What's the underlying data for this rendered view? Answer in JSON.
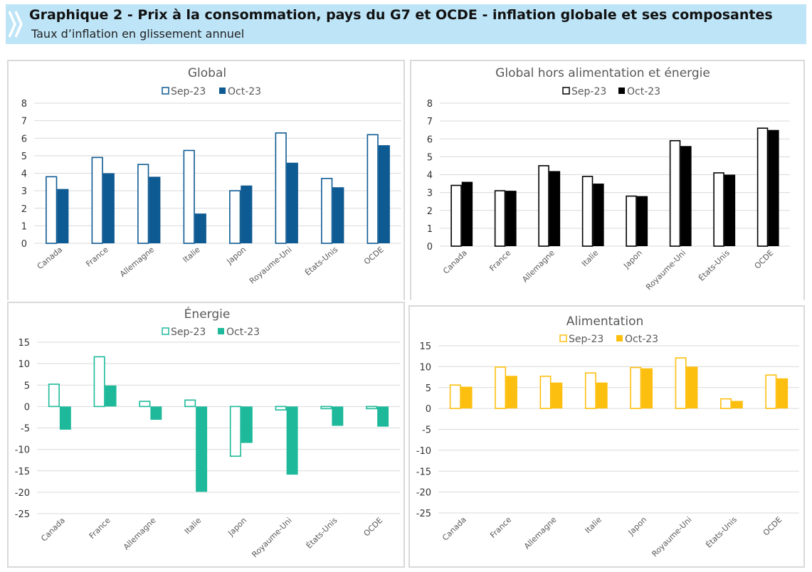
{
  "header": {
    "title": "Graphique 2 - Prix à la consommation, pays du G7 et OCDE - inflation globale et ses composantes",
    "subtitle": "Taux d’inflation en glissement annuel"
  },
  "chart_data": [
    {
      "type": "bar",
      "title": "Global",
      "categories": [
        "Canada",
        "France",
        "Allemagne",
        "Italie",
        "Japon",
        "Royaume-Uni",
        "États-Unis",
        "OCDE"
      ],
      "series": [
        {
          "name": "Sep-23",
          "values": [
            3.8,
            4.9,
            4.5,
            5.3,
            3.0,
            6.3,
            3.7,
            6.2
          ]
        },
        {
          "name": "Oct-23",
          "values": [
            3.1,
            4.0,
            3.8,
            1.7,
            3.3,
            4.6,
            3.2,
            5.6
          ]
        }
      ],
      "yticks": [
        "0",
        "1",
        "2",
        "3",
        "4",
        "5",
        "6",
        "7",
        "8"
      ],
      "ylim": [
        0,
        8
      ],
      "colors": {
        "accent": "#0e5a92"
      },
      "legend": "top-center",
      "grid": true
    },
    {
      "type": "bar",
      "title": "Global hors alimentation et énergie",
      "categories": [
        "Canada",
        "France",
        "Allemagne",
        "Italie",
        "Japon",
        "Royaume-Uni",
        "États-Unis",
        "OCDE"
      ],
      "series": [
        {
          "name": "Sep-23",
          "values": [
            3.4,
            3.1,
            4.5,
            3.9,
            2.8,
            5.9,
            4.1,
            6.6
          ]
        },
        {
          "name": "Oct-23",
          "values": [
            3.6,
            3.1,
            4.2,
            3.5,
            2.8,
            5.6,
            4.0,
            6.5
          ]
        }
      ],
      "yticks": [
        "0",
        "1",
        "2",
        "3",
        "4",
        "5",
        "6",
        "7",
        "8"
      ],
      "ylim": [
        0,
        8
      ],
      "colors": {
        "accent": "#000000"
      },
      "legend": "top-center",
      "grid": true
    },
    {
      "type": "bar",
      "title": "Énergie",
      "categories": [
        "Canada",
        "France",
        "Allemagne",
        "Italie",
        "Japon",
        "Royaume-Uni",
        "États-Unis",
        "OCDE"
      ],
      "series": [
        {
          "name": "Sep-23",
          "values": [
            5.2,
            11.6,
            1.2,
            1.5,
            -11.6,
            -0.8,
            -0.5,
            -0.5
          ]
        },
        {
          "name": "Oct-23",
          "values": [
            -5.4,
            4.9,
            -3.1,
            -19.9,
            -8.5,
            -15.9,
            -4.5,
            -4.7
          ]
        }
      ],
      "yticks": [
        "-25",
        "-20",
        "-15",
        "-10",
        "-5",
        "0",
        "5",
        "10",
        "15"
      ],
      "ylim": [
        -25,
        15
      ],
      "colors": {
        "accent": "#1db99a"
      },
      "legend": "top-center",
      "grid": true
    },
    {
      "type": "bar",
      "title": "Alimentation",
      "categories": [
        "Canada",
        "France",
        "Allemagne",
        "Italie",
        "Japon",
        "Royaume-Uni",
        "États-Unis",
        "OCDE"
      ],
      "series": [
        {
          "name": "Sep-23",
          "values": [
            5.6,
            9.9,
            7.7,
            8.5,
            9.8,
            12.1,
            2.3,
            8.0
          ]
        },
        {
          "name": "Oct-23",
          "values": [
            5.2,
            7.8,
            6.2,
            6.2,
            9.6,
            10.0,
            1.8,
            7.2
          ]
        }
      ],
      "yticks": [
        "-25",
        "-20",
        "-15",
        "-10",
        "-5",
        "0",
        "5",
        "10",
        "15"
      ],
      "ylim": [
        -25,
        15
      ],
      "colors": {
        "accent": "#fdbf0f"
      },
      "legend": "top-center",
      "grid": true
    }
  ]
}
